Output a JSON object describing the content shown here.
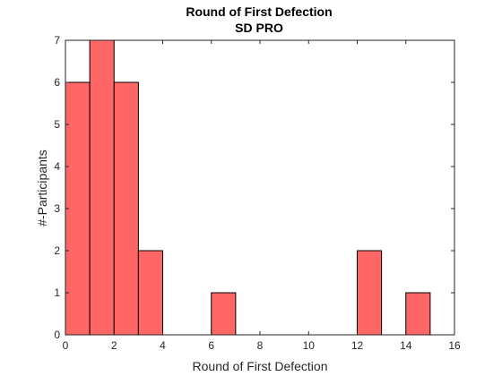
{
  "chart_data": {
    "type": "bar",
    "title": "Round of First Defection",
    "subtitle": "SD PRO",
    "xlabel": "Round of First Defection",
    "ylabel": "#-Participants",
    "xlim": [
      0,
      16
    ],
    "ylim": [
      0,
      7
    ],
    "xticks": [
      "0",
      "2",
      "4",
      "6",
      "8",
      "10",
      "12",
      "14",
      "16"
    ],
    "yticks": [
      "0",
      "1",
      "2",
      "3",
      "4",
      "5",
      "6",
      "7"
    ],
    "grid": false,
    "bar_color": "#ff6666",
    "edge_color": "#000000",
    "bins": [
      {
        "x0": 0,
        "x1": 1,
        "value": 6
      },
      {
        "x0": 1,
        "x1": 2,
        "value": 7
      },
      {
        "x0": 2,
        "x1": 3,
        "value": 6
      },
      {
        "x0": 3,
        "x1": 4,
        "value": 2
      },
      {
        "x0": 4,
        "x1": 5,
        "value": 0
      },
      {
        "x0": 5,
        "x1": 6,
        "value": 0
      },
      {
        "x0": 6,
        "x1": 7,
        "value": 1
      },
      {
        "x0": 7,
        "x1": 8,
        "value": 0
      },
      {
        "x0": 8,
        "x1": 9,
        "value": 0
      },
      {
        "x0": 9,
        "x1": 10,
        "value": 0
      },
      {
        "x0": 10,
        "x1": 11,
        "value": 0
      },
      {
        "x0": 11,
        "x1": 12,
        "value": 0
      },
      {
        "x0": 12,
        "x1": 13,
        "value": 2
      },
      {
        "x0": 13,
        "x1": 14,
        "value": 0
      },
      {
        "x0": 14,
        "x1": 15,
        "value": 1
      }
    ]
  }
}
